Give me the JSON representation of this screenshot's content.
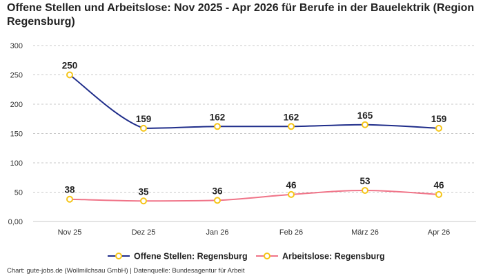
{
  "chart_data": {
    "type": "line",
    "title": "Offene Stellen und Arbeitslose: Nov 2025 - Apr 2026 für Berufe in der Bauelektrik (Region Regensburg)",
    "categories": [
      "Nov 25",
      "Dez 25",
      "Jan 26",
      "Feb 26",
      "März 26",
      "Apr 26"
    ],
    "series": [
      {
        "name": "Offene Stellen: Regensburg",
        "values": [
          250,
          159,
          162,
          162,
          165,
          159
        ],
        "color": "#1f2d8a"
      },
      {
        "name": "Arbeitslose: Regensburg",
        "values": [
          38,
          35,
          36,
          46,
          53,
          46
        ],
        "color": "#f07488"
      }
    ],
    "y_ticks": [
      "0,00",
      "50",
      "100",
      "150",
      "200",
      "250",
      "300"
    ],
    "ylim": [
      0,
      300
    ],
    "grid": true,
    "legend_position": "bottom",
    "marker_color": "#f5c518",
    "xlabel": "",
    "ylabel": ""
  },
  "credit": "Chart: gute-jobs.de (Wollmilchsau GmbH) | Datenquelle: Bundesagentur für Arbeit"
}
